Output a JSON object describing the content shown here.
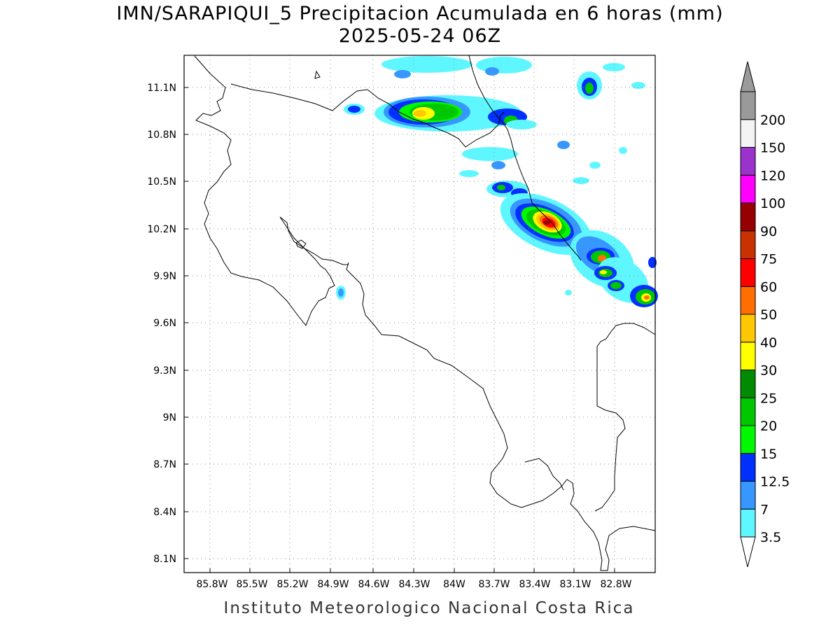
{
  "title": "IMN/SARAPIQUI_5 Precipitacion Acumulada en 6 horas (mm)",
  "subtitle": "2025-05-24 06Z",
  "footer": "Instituto Meteorologico Nacional Costa Rica",
  "map": {
    "lon_labels": [
      "85.8W",
      "85.5W",
      "85.2W",
      "84.9W",
      "84.6W",
      "84.3W",
      "84W",
      "83.7W",
      "83.4W",
      "83.1W",
      "82.8W"
    ],
    "lat_labels": [
      "11.1N",
      "10.8N",
      "10.5N",
      "10.2N",
      "9.9N",
      "9.6N",
      "9.3N",
      "9N",
      "8.7N",
      "8.4N",
      "8.1N"
    ],
    "lon_range": [
      -85.98,
      -82.6
    ],
    "lat_range": [
      8.02,
      11.3
    ],
    "grid": true
  },
  "colorbar": {
    "labels": [
      "3.5",
      "7",
      "12.5",
      "15",
      "20",
      "25",
      "30",
      "40",
      "50",
      "60",
      "75",
      "90",
      "100",
      "120",
      "150",
      "200"
    ],
    "colors": [
      "#5ff7ff",
      "#3797ff",
      "#0030ff",
      "#00f800",
      "#00c800",
      "#008b00",
      "#ffff00",
      "#ffc800",
      "#ff6e00",
      "#ff0000",
      "#c83200",
      "#960000",
      "#ff00ff",
      "#9933cc",
      "#f4f4f4",
      "#9a9a9a"
    ],
    "under_color": "#ffffff"
  }
}
